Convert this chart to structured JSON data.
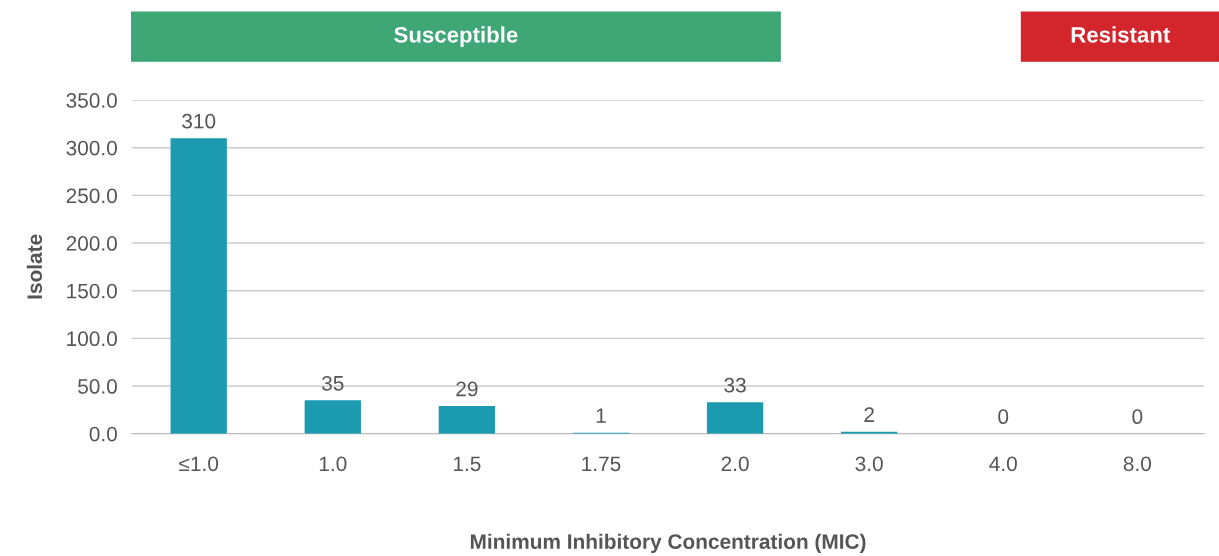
{
  "chart_data": {
    "type": "bar",
    "xlabel": "Minimum Inhibitory Concentration (MIC)",
    "ylabel": "Isolate",
    "categories": [
      "≤1.0",
      "1.0",
      "1.5",
      "1.75",
      "2.0",
      "3.0",
      "4.0",
      "8.0"
    ],
    "values": [
      310,
      35,
      29,
      1,
      33,
      2,
      0,
      0
    ],
    "color": "#1b9ab0",
    "data_labels": true,
    "ylim": [
      0,
      350
    ],
    "yticks": [
      {
        "value": 0,
        "label": "0.0"
      },
      {
        "value": 50,
        "label": "50.0"
      },
      {
        "value": 100,
        "label": "100.0"
      },
      {
        "value": 150,
        "label": "150.0"
      },
      {
        "value": 200,
        "label": "200.0"
      },
      {
        "value": 250,
        "label": "250.0"
      },
      {
        "value": 300,
        "label": "300.0"
      },
      {
        "value": 350,
        "label": "350.0"
      }
    ],
    "grid": "y",
    "legend": false,
    "annotations": [
      "Susceptible",
      "Resistant"
    ]
  }
}
